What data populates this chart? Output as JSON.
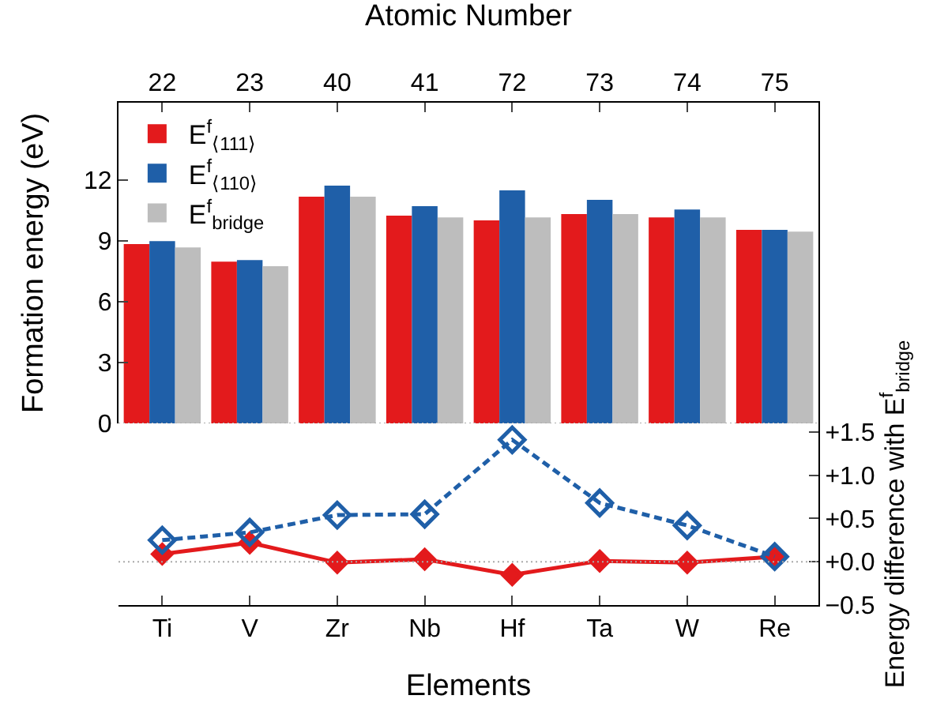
{
  "chart_data": [
    {
      "type": "bar",
      "ylabel": "Formation energy (eV)",
      "x2label": "Atomic Number",
      "categories": [
        "22",
        "23",
        "40",
        "41",
        "72",
        "73",
        "74",
        "75"
      ],
      "ylim": [
        0,
        15.8
      ],
      "yticks": [
        0,
        3,
        6,
        9,
        12
      ],
      "legend": "top left",
      "grid": false,
      "ref_lines": [
        {
          "axis": "y",
          "value": 0,
          "color": "#aaaaaa",
          "line_style": "dotted"
        }
      ],
      "series": [
        {
          "name": "E$^{f}$$_{⟨111⟩}$",
          "color": "#e31a1c",
          "values": [
            8.83,
            7.97,
            11.17,
            10.23,
            10.0,
            10.31,
            10.15,
            9.53
          ]
        },
        {
          "name": "E$^{f}$$_{⟨110⟩}$",
          "color": "#1f5fa8",
          "values": [
            8.98,
            8.05,
            11.71,
            10.7,
            11.48,
            11.01,
            10.54,
            9.53
          ]
        },
        {
          "name": "E$^{f}$$_{bridge}$",
          "color": "#bdbdbd",
          "values": [
            8.67,
            7.74,
            11.17,
            10.15,
            10.15,
            10.31,
            10.15,
            9.45
          ]
        }
      ]
    },
    {
      "type": "line",
      "xlabel": "Elements",
      "y2label": "Energy difference with E$^{f}$$_{bridge}$",
      "categories": [
        "Ti",
        "V",
        "Zr",
        "Nb",
        "Hf",
        "Ta",
        "W",
        "Re"
      ],
      "y2lim": [
        -0.5,
        1.6
      ],
      "y2ticks": [
        {
          "value": -0.5,
          "label": "−0.5"
        },
        {
          "value": 0,
          "label": "+0.0"
        },
        {
          "value": 0.5,
          "label": "+0.5"
        },
        {
          "value": 1,
          "label": "+1.0"
        },
        {
          "value": 1.5,
          "label": "+1.5"
        }
      ],
      "legend": false,
      "grid": false,
      "marker": "diamond",
      "ref_lines": [
        {
          "axis": "y2",
          "value": 0,
          "color": "#aaaaaa",
          "line_style": "dotted"
        }
      ],
      "series": [
        {
          "axis": "y2",
          "color": "#e31a1c",
          "line_style": "solid",
          "values": [
            0.09,
            0.22,
            -0.01,
            0.03,
            -0.15,
            0.01,
            -0.01,
            0.06
          ]
        },
        {
          "axis": "y2",
          "color": "#1f5fa8",
          "line_style": "dashed",
          "values": [
            0.25,
            0.34,
            0.54,
            0.55,
            1.41,
            0.68,
            0.42,
            0.06
          ]
        }
      ]
    }
  ]
}
